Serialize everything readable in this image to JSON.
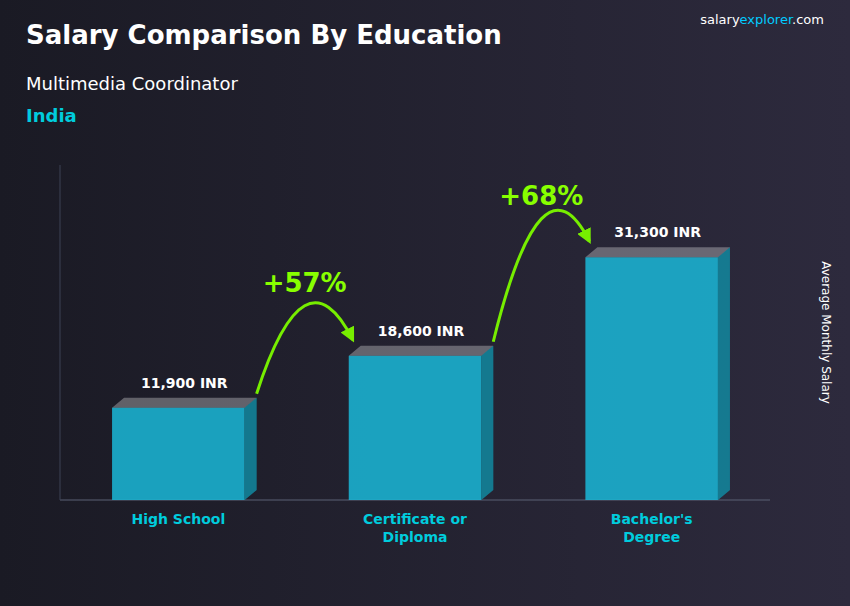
{
  "chart_data": {
    "type": "bar",
    "title": "Salary Comparison By Education",
    "subtitle": "Multimedia Coordinator",
    "country": "India",
    "source": [
      "salary",
      "explorer",
      ".com"
    ],
    "ylabel": "Average Monthly Salary",
    "categories": [
      "High School",
      "Certificate or\nDiploma",
      "Bachelor's\nDegree"
    ],
    "values": [
      11900,
      18600,
      31300
    ],
    "value_labels": [
      "11,900 INR",
      "18,600 INR",
      "31,300 INR"
    ],
    "data_labels": true,
    "annotations": [
      "+57%",
      "+68%"
    ],
    "color": "#1ab8d8",
    "ylim": [
      0,
      43200
    ],
    "tick_labels": false,
    "grid": false
  }
}
